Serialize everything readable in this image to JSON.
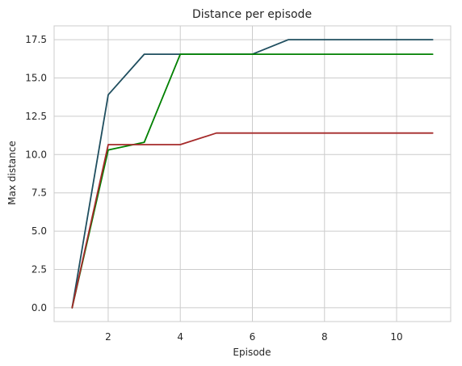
{
  "chart_data": {
    "type": "line",
    "title": "Distance per episode",
    "xlabel": "Episode",
    "ylabel": "Max distance",
    "xlim": [
      0.5,
      11.5
    ],
    "ylim": [
      -0.9,
      18.4
    ],
    "xticks": [
      2,
      4,
      6,
      8,
      10
    ],
    "yticks": [
      0.0,
      2.5,
      5.0,
      7.5,
      10.0,
      12.5,
      15.0,
      17.5
    ],
    "xtick_labels": [
      "2",
      "4",
      "6",
      "8",
      "10"
    ],
    "ytick_labels": [
      "0.0",
      "2.5",
      "5.0",
      "7.5",
      "10.0",
      "12.5",
      "15.0",
      "17.5"
    ],
    "grid": true,
    "x": [
      1,
      2,
      3,
      4,
      5,
      6,
      7,
      8,
      9,
      10,
      11
    ],
    "series": [
      {
        "color": "#1f4e5f",
        "values": [
          0,
          13.9,
          16.55,
          16.55,
          16.55,
          16.55,
          17.5,
          17.5,
          17.5,
          17.5,
          17.5
        ]
      },
      {
        "color": "#008000",
        "values": [
          0,
          10.3,
          10.8,
          16.55,
          16.55,
          16.55,
          16.55,
          16.55,
          16.55,
          16.55,
          16.55
        ]
      },
      {
        "color": "#a52a2a",
        "values": [
          0,
          10.65,
          10.65,
          10.65,
          11.4,
          11.4,
          11.4,
          11.4,
          11.4,
          11.4,
          11.4
        ]
      }
    ]
  }
}
